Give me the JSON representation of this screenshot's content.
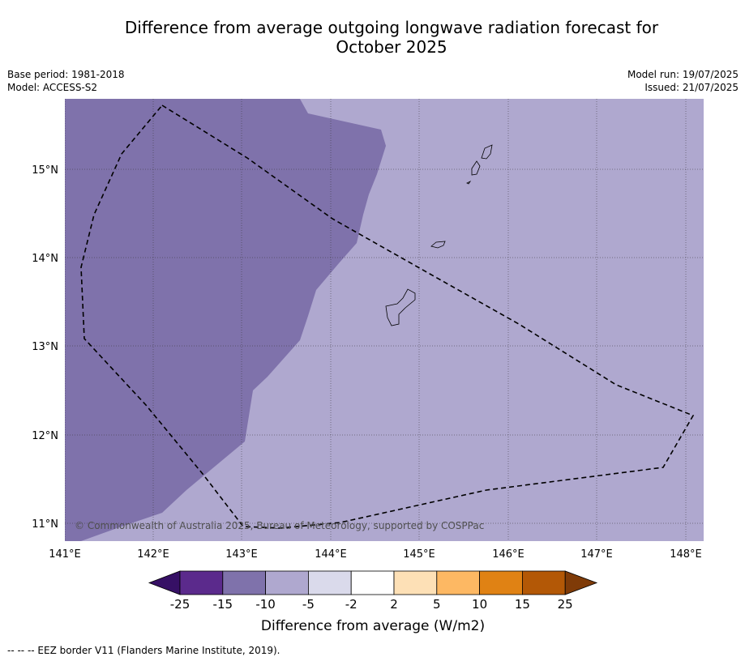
{
  "title_line1": "Difference from average outgoing longwave radiation forecast for",
  "title_line2": "October 2025",
  "meta": {
    "base_period": "Base period: 1981-2018",
    "model": "Model: ACCESS-S2",
    "model_run": "Model run: 19/07/2025",
    "issued": "Issued: 21/07/2025"
  },
  "map": {
    "lon_ticks": [
      "141°E",
      "142°E",
      "143°E",
      "144°E",
      "145°E",
      "146°E",
      "147°E",
      "148°E"
    ],
    "lat_ticks": [
      "15°N",
      "14°N",
      "13°N",
      "12°N",
      "11°N"
    ],
    "copyright": "© Commonwealth of Australia 2025, Bureau of Meteorology, supported by COSPPac",
    "colors": {
      "cat_-10_-5": "#7f72ab",
      "cat_-5_-2": "#afa8cf"
    }
  },
  "colorbar": {
    "labels": [
      "-25",
      "-15",
      "-10",
      "-5",
      "-2",
      "2",
      "5",
      "10",
      "15",
      "25"
    ],
    "colors": [
      "#361065",
      "#5b2a8c",
      "#7f72ab",
      "#afa8cf",
      "#dadaeb",
      "#ffffff",
      "#fde0b6",
      "#fdb863",
      "#e08214",
      "#b35806",
      "#7f3b08"
    ],
    "title": "Difference from average (W/m2)"
  },
  "footnote": "--  --  -- EEZ border V11 (Flanders Marine Institute, 2019)."
}
